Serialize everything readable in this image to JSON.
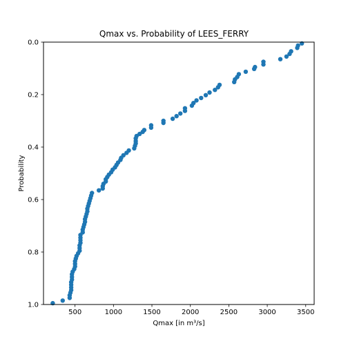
{
  "chart_data": {
    "type": "scatter",
    "title": "Qmax vs. Probability of LEES_FERRY",
    "xlabel": "Qmax [in m³/s]",
    "ylabel": "Probability",
    "xlim": [
      90,
      3610
    ],
    "ylim": [
      1.0,
      0.0
    ],
    "y_inverted": true,
    "grid": false,
    "xticks": [
      500,
      1000,
      1500,
      2000,
      2500,
      3000,
      3500
    ],
    "xtick_labels": [
      "500",
      "1000",
      "1500",
      "2000",
      "2500",
      "3000",
      "3500"
    ],
    "yticks": [
      0.0,
      0.2,
      0.4,
      0.6,
      0.8,
      1.0
    ],
    "ytick_labels": [
      "0.0",
      "0.2",
      "0.4",
      "0.6",
      "0.8",
      "1.0"
    ],
    "marker_color": "#1f77b4",
    "points": [
      [
        3450,
        0.005
      ],
      [
        3400,
        0.013
      ],
      [
        3390,
        0.022
      ],
      [
        3310,
        0.035
      ],
      [
        3290,
        0.045
      ],
      [
        3250,
        0.055
      ],
      [
        3170,
        0.065
      ],
      [
        2950,
        0.075
      ],
      [
        2950,
        0.085
      ],
      [
        2840,
        0.095
      ],
      [
        2830,
        0.102
      ],
      [
        2720,
        0.113
      ],
      [
        2630,
        0.122
      ],
      [
        2610,
        0.133
      ],
      [
        2580,
        0.142
      ],
      [
        2570,
        0.152
      ],
      [
        2380,
        0.163
      ],
      [
        2360,
        0.172
      ],
      [
        2320,
        0.182
      ],
      [
        2250,
        0.192
      ],
      [
        2200,
        0.202
      ],
      [
        2140,
        0.213
      ],
      [
        2080,
        0.222
      ],
      [
        2040,
        0.232
      ],
      [
        2020,
        0.242
      ],
      [
        1930,
        0.252
      ],
      [
        1930,
        0.262
      ],
      [
        1870,
        0.272
      ],
      [
        1820,
        0.282
      ],
      [
        1770,
        0.292
      ],
      [
        1650,
        0.3
      ],
      [
        1650,
        0.308
      ],
      [
        1490,
        0.317
      ],
      [
        1490,
        0.326
      ],
      [
        1400,
        0.335
      ],
      [
        1380,
        0.342
      ],
      [
        1340,
        0.35
      ],
      [
        1300,
        0.358
      ],
      [
        1290,
        0.367
      ],
      [
        1290,
        0.377
      ],
      [
        1290,
        0.386
      ],
      [
        1280,
        0.395
      ],
      [
        1270,
        0.405
      ],
      [
        1200,
        0.413
      ],
      [
        1170,
        0.422
      ],
      [
        1130,
        0.431
      ],
      [
        1100,
        0.441
      ],
      [
        1090,
        0.449
      ],
      [
        1060,
        0.459
      ],
      [
        1040,
        0.468
      ],
      [
        1020,
        0.477
      ],
      [
        990,
        0.486
      ],
      [
        970,
        0.496
      ],
      [
        940,
        0.505
      ],
      [
        920,
        0.514
      ],
      [
        900,
        0.523
      ],
      [
        900,
        0.531
      ],
      [
        870,
        0.54
      ],
      [
        860,
        0.549
      ],
      [
        860,
        0.558
      ],
      [
        810,
        0.565
      ],
      [
        720,
        0.575
      ],
      [
        710,
        0.585
      ],
      [
        700,
        0.595
      ],
      [
        690,
        0.605
      ],
      [
        680,
        0.615
      ],
      [
        670,
        0.625
      ],
      [
        660,
        0.635
      ],
      [
        660,
        0.645
      ],
      [
        650,
        0.655
      ],
      [
        640,
        0.665
      ],
      [
        630,
        0.675
      ],
      [
        630,
        0.685
      ],
      [
        620,
        0.695
      ],
      [
        610,
        0.705
      ],
      [
        600,
        0.715
      ],
      [
        600,
        0.725
      ],
      [
        570,
        0.735
      ],
      [
        570,
        0.745
      ],
      [
        570,
        0.755
      ],
      [
        570,
        0.765
      ],
      [
        560,
        0.775
      ],
      [
        560,
        0.785
      ],
      [
        560,
        0.795
      ],
      [
        540,
        0.805
      ],
      [
        520,
        0.815
      ],
      [
        510,
        0.825
      ],
      [
        500,
        0.835
      ],
      [
        500,
        0.845
      ],
      [
        500,
        0.855
      ],
      [
        490,
        0.865
      ],
      [
        470,
        0.875
      ],
      [
        460,
        0.885
      ],
      [
        460,
        0.895
      ],
      [
        460,
        0.905
      ],
      [
        450,
        0.915
      ],
      [
        450,
        0.925
      ],
      [
        450,
        0.935
      ],
      [
        450,
        0.945
      ],
      [
        440,
        0.955
      ],
      [
        430,
        0.965
      ],
      [
        430,
        0.975
      ],
      [
        340,
        0.985
      ],
      [
        210,
        0.995
      ]
    ]
  }
}
